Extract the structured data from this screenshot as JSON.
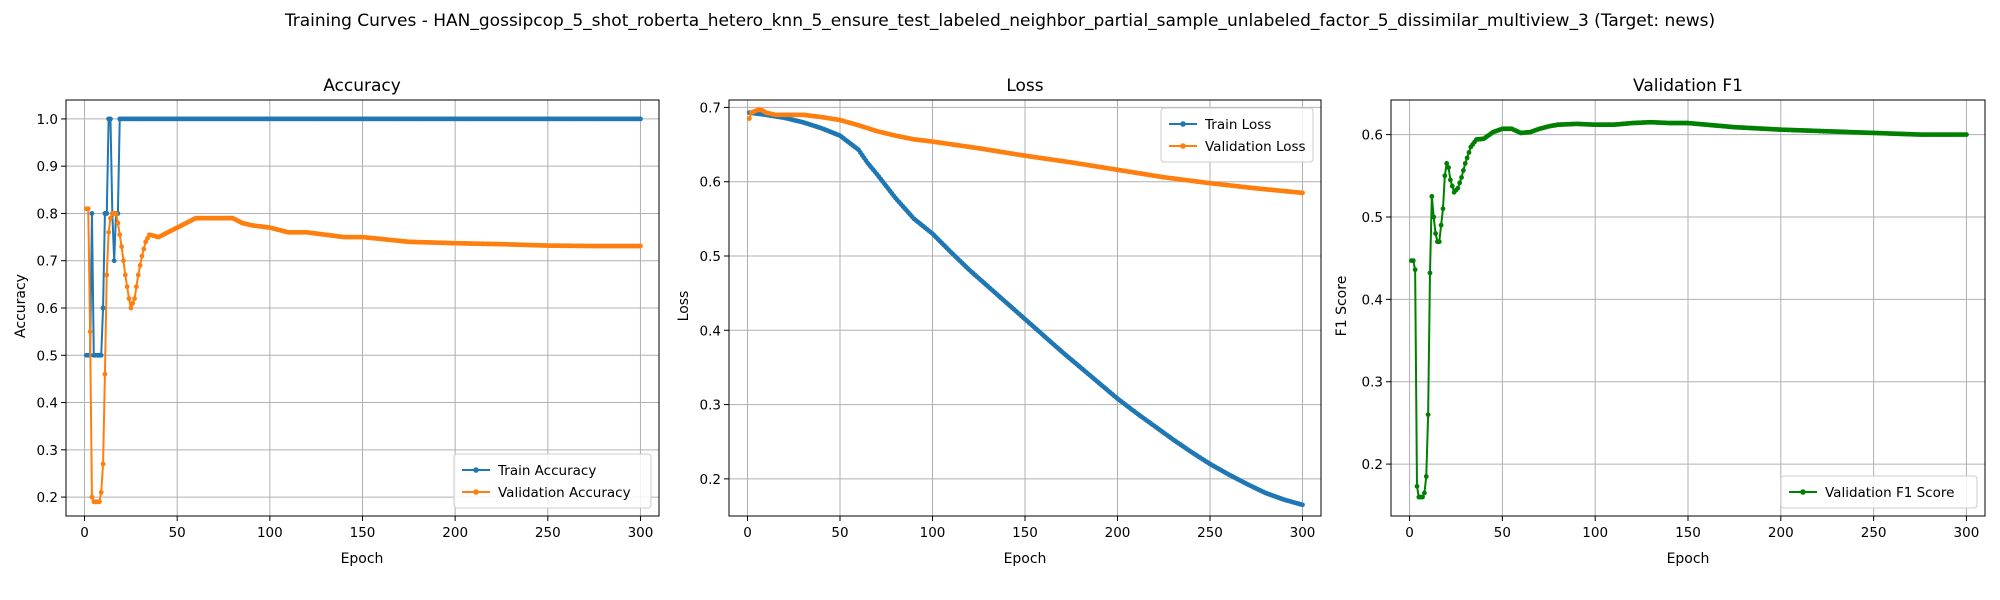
{
  "suptitle": "Training Curves - HAN_gossipcop_5_shot_roberta_hetero_knn_5_ensure_test_labeled_neighbor_partial_sample_unlabeled_factor_5_dissimilar_multiview_3 (Target: news)",
  "chart_data": [
    {
      "type": "line",
      "title": "Accuracy",
      "xlabel": "Epoch",
      "ylabel": "Accuracy",
      "xlim": [
        -10,
        310
      ],
      "ylim": [
        0.16,
        1.04
      ],
      "xticks": [
        0,
        50,
        100,
        150,
        200,
        250,
        300
      ],
      "yticks": [
        0.2,
        0.3,
        0.4,
        0.5,
        0.6,
        0.7,
        0.8,
        0.9,
        1.0
      ],
      "ytick_labels": [
        "0.2",
        "0.3",
        "0.4",
        "0.5",
        "0.6",
        "0.7",
        "0.8",
        "0.9",
        "1.0"
      ],
      "grid": true,
      "legend_position": "lower-right",
      "series": [
        {
          "name": "Train Accuracy",
          "color": "#1f77b4",
          "x_range": [
            1,
            300
          ],
          "knots": [
            [
              1,
              0.5
            ],
            [
              3,
              0.5
            ],
            [
              4,
              0.8
            ],
            [
              5,
              0.5
            ],
            [
              9,
              0.5
            ],
            [
              10,
              0.6
            ],
            [
              11,
              0.8
            ],
            [
              12,
              0.8
            ],
            [
              13,
              1.0
            ],
            [
              14,
              1.0
            ],
            [
              15,
              0.8
            ],
            [
              16,
              0.7
            ],
            [
              17,
              0.8
            ],
            [
              18,
              0.8
            ],
            [
              19,
              1.0
            ],
            [
              300,
              1.0
            ]
          ]
        },
        {
          "name": "Validation Accuracy",
          "color": "#ff7f0e",
          "x_range": [
            1,
            300
          ],
          "knots": [
            [
              1,
              0.81
            ],
            [
              2,
              0.81
            ],
            [
              3,
              0.55
            ],
            [
              4,
              0.2
            ],
            [
              5,
              0.19
            ],
            [
              8,
              0.19
            ],
            [
              9,
              0.21
            ],
            [
              10,
              0.27
            ],
            [
              11,
              0.46
            ],
            [
              12,
              0.67
            ],
            [
              13,
              0.76
            ],
            [
              14,
              0.79
            ],
            [
              15,
              0.8
            ],
            [
              16,
              0.8
            ],
            [
              17,
              0.8
            ],
            [
              18,
              0.78
            ],
            [
              20,
              0.73
            ],
            [
              22,
              0.67
            ],
            [
              24,
              0.62
            ],
            [
              25,
              0.6
            ],
            [
              27,
              0.62
            ],
            [
              29,
              0.67
            ],
            [
              31,
              0.71
            ],
            [
              33,
              0.74
            ],
            [
              35,
              0.755
            ],
            [
              40,
              0.75
            ],
            [
              45,
              0.76
            ],
            [
              50,
              0.77
            ],
            [
              55,
              0.78
            ],
            [
              60,
              0.79
            ],
            [
              65,
              0.79
            ],
            [
              70,
              0.79
            ],
            [
              75,
              0.79
            ],
            [
              80,
              0.79
            ],
            [
              85,
              0.78
            ],
            [
              90,
              0.775
            ],
            [
              100,
              0.77
            ],
            [
              110,
              0.76
            ],
            [
              120,
              0.76
            ],
            [
              130,
              0.755
            ],
            [
              140,
              0.75
            ],
            [
              150,
              0.75
            ],
            [
              175,
              0.74
            ],
            [
              200,
              0.737
            ],
            [
              225,
              0.735
            ],
            [
              250,
              0.732
            ],
            [
              275,
              0.731
            ],
            [
              300,
              0.731
            ]
          ]
        }
      ]
    },
    {
      "type": "line",
      "title": "Loss",
      "xlabel": "Epoch",
      "ylabel": "Loss",
      "xlim": [
        -10,
        310
      ],
      "ylim": [
        0.15,
        0.71
      ],
      "xticks": [
        0,
        50,
        100,
        150,
        200,
        250,
        300
      ],
      "yticks": [
        0.2,
        0.3,
        0.4,
        0.5,
        0.6,
        0.7
      ],
      "ytick_labels": [
        "0.2",
        "0.3",
        "0.4",
        "0.5",
        "0.6",
        "0.7"
      ],
      "grid": true,
      "legend_position": "upper-right",
      "series": [
        {
          "name": "Train Loss",
          "color": "#1f77b4",
          "x_range": [
            1,
            300
          ],
          "knots": [
            [
              1,
              0.693
            ],
            [
              10,
              0.69
            ],
            [
              20,
              0.686
            ],
            [
              30,
              0.68
            ],
            [
              40,
              0.672
            ],
            [
              50,
              0.662
            ],
            [
              60,
              0.643
            ],
            [
              65,
              0.625
            ],
            [
              70,
              0.61
            ],
            [
              80,
              0.578
            ],
            [
              90,
              0.55
            ],
            [
              100,
              0.53
            ],
            [
              110,
              0.505
            ],
            [
              120,
              0.481
            ],
            [
              130,
              0.459
            ],
            [
              140,
              0.437
            ],
            [
              150,
              0.415
            ],
            [
              160,
              0.393
            ],
            [
              170,
              0.371
            ],
            [
              180,
              0.35
            ],
            [
              190,
              0.329
            ],
            [
              200,
              0.308
            ],
            [
              210,
              0.289
            ],
            [
              220,
              0.271
            ],
            [
              230,
              0.253
            ],
            [
              240,
              0.236
            ],
            [
              250,
              0.22
            ],
            [
              260,
              0.206
            ],
            [
              270,
              0.193
            ],
            [
              280,
              0.181
            ],
            [
              290,
              0.172
            ],
            [
              300,
              0.165
            ]
          ]
        },
        {
          "name": "Validation Loss",
          "color": "#ff7f0e",
          "x_range": [
            1,
            300
          ],
          "knots": [
            [
              1,
              0.685
            ],
            [
              2,
              0.693
            ],
            [
              4,
              0.695
            ],
            [
              6,
              0.697
            ],
            [
              8,
              0.696
            ],
            [
              10,
              0.693
            ],
            [
              15,
              0.69
            ],
            [
              20,
              0.69
            ],
            [
              25,
              0.69
            ],
            [
              30,
              0.69
            ],
            [
              40,
              0.687
            ],
            [
              50,
              0.683
            ],
            [
              60,
              0.676
            ],
            [
              70,
              0.668
            ],
            [
              80,
              0.662
            ],
            [
              90,
              0.657
            ],
            [
              100,
              0.654
            ],
            [
              125,
              0.645
            ],
            [
              150,
              0.635
            ],
            [
              175,
              0.626
            ],
            [
              200,
              0.616
            ],
            [
              225,
              0.606
            ],
            [
              250,
              0.598
            ],
            [
              275,
              0.591
            ],
            [
              300,
              0.585
            ]
          ]
        }
      ]
    },
    {
      "type": "line",
      "title": "Validation F1",
      "xlabel": "Epoch",
      "ylabel": "F1 Score",
      "xlim": [
        -10,
        310
      ],
      "ylim": [
        0.137,
        0.642
      ],
      "xticks": [
        0,
        50,
        100,
        150,
        200,
        250,
        300
      ],
      "yticks": [
        0.2,
        0.3,
        0.4,
        0.5,
        0.6
      ],
      "ytick_labels": [
        "0.2",
        "0.3",
        "0.4",
        "0.5",
        "0.6"
      ],
      "grid": true,
      "legend_position": "lower-right",
      "series": [
        {
          "name": "Validation F1 Score",
          "color": "#008000",
          "x_range": [
            1,
            300
          ],
          "knots": [
            [
              1,
              0.447
            ],
            [
              2,
              0.447
            ],
            [
              3,
              0.436
            ],
            [
              4,
              0.173
            ],
            [
              5,
              0.16
            ],
            [
              7,
              0.16
            ],
            [
              8,
              0.165
            ],
            [
              9,
              0.185
            ],
            [
              10,
              0.26
            ],
            [
              11,
              0.432
            ],
            [
              12,
              0.525
            ],
            [
              13,
              0.5
            ],
            [
              14,
              0.48
            ],
            [
              15,
              0.47
            ],
            [
              16,
              0.47
            ],
            [
              17,
              0.49
            ],
            [
              18,
              0.51
            ],
            [
              19,
              0.55
            ],
            [
              20,
              0.565
            ],
            [
              21,
              0.56
            ],
            [
              22,
              0.545
            ],
            [
              24,
              0.53
            ],
            [
              26,
              0.535
            ],
            [
              28,
              0.548
            ],
            [
              30,
              0.565
            ],
            [
              33,
              0.585
            ],
            [
              36,
              0.594
            ],
            [
              40,
              0.595
            ],
            [
              45,
              0.603
            ],
            [
              50,
              0.607
            ],
            [
              55,
              0.607
            ],
            [
              60,
              0.602
            ],
            [
              65,
              0.603
            ],
            [
              70,
              0.607
            ],
            [
              75,
              0.61
            ],
            [
              80,
              0.612
            ],
            [
              90,
              0.613
            ],
            [
              100,
              0.612
            ],
            [
              110,
              0.612
            ],
            [
              120,
              0.614
            ],
            [
              130,
              0.615
            ],
            [
              140,
              0.614
            ],
            [
              150,
              0.614
            ],
            [
              160,
              0.612
            ],
            [
              175,
              0.609
            ],
            [
              200,
              0.606
            ],
            [
              225,
              0.604
            ],
            [
              250,
              0.602
            ],
            [
              275,
              0.6
            ],
            [
              300,
              0.6
            ]
          ]
        }
      ]
    }
  ]
}
